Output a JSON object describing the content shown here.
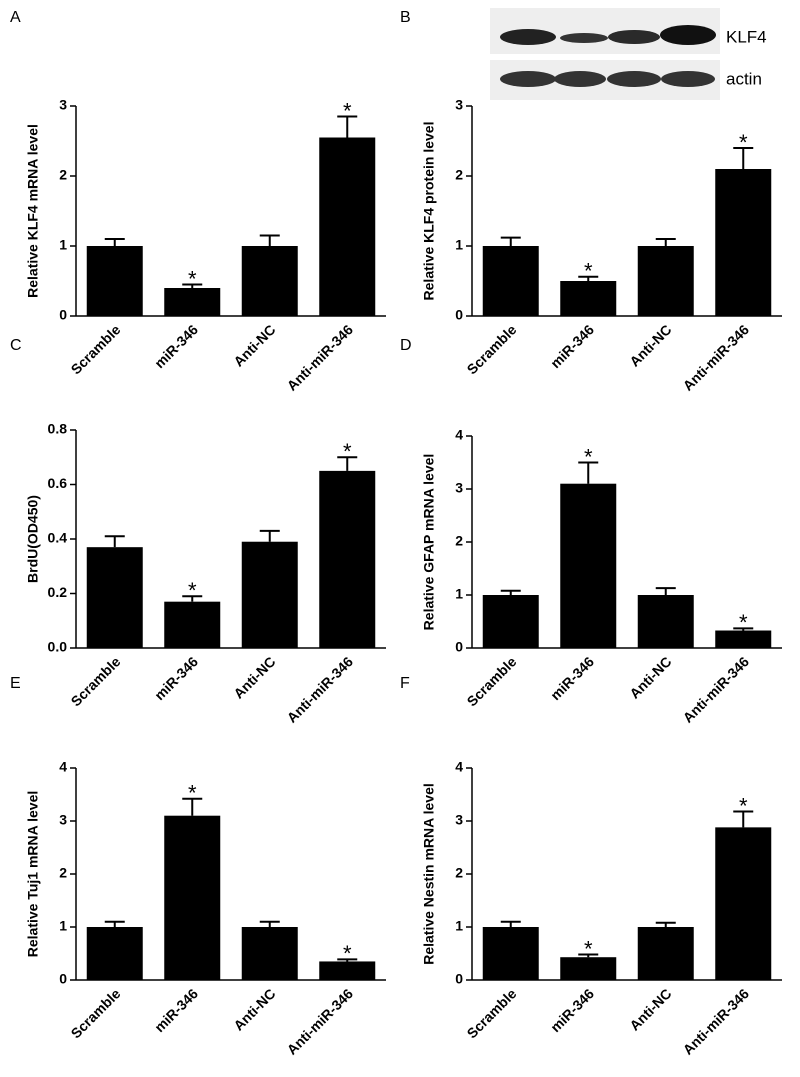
{
  "chart_data": [
    {
      "type": "bar",
      "panel": "A",
      "ylabel": "Relative KLF4 mRNA level",
      "categories": [
        "Scramble",
        "miR-346",
        "Anti-NC",
        "Anti-miR-346"
      ],
      "values": [
        1.0,
        0.4,
        1.0,
        2.55
      ],
      "errors": [
        0.1,
        0.05,
        0.15,
        0.3
      ],
      "significance": [
        null,
        "*",
        null,
        "*"
      ],
      "color": "#000000",
      "ylim": [
        0,
        3
      ],
      "yticks": [
        0,
        1,
        2,
        3
      ]
    },
    {
      "type": "bar",
      "panel": "B",
      "ylabel": "Relative KLF4 protein level",
      "blot_labels": [
        "KLF4",
        "actin"
      ],
      "categories": [
        "Scramble",
        "miR-346",
        "Anti-NC",
        "Anti-miR-346"
      ],
      "values": [
        1.0,
        0.5,
        1.0,
        2.1
      ],
      "errors": [
        0.12,
        0.06,
        0.1,
        0.3
      ],
      "significance": [
        null,
        "*",
        null,
        "*"
      ],
      "color": "#000000",
      "ylim": [
        0,
        3
      ],
      "yticks": [
        0,
        1,
        2,
        3
      ]
    },
    {
      "type": "bar",
      "panel": "C",
      "ylabel": "BrdU(OD450)",
      "categories": [
        "Scramble",
        "miR-346",
        "Anti-NC",
        "Anti-miR-346"
      ],
      "values": [
        0.37,
        0.17,
        0.39,
        0.65
      ],
      "errors": [
        0.04,
        0.02,
        0.04,
        0.05
      ],
      "significance": [
        null,
        "*",
        null,
        "*"
      ],
      "color": "#000000",
      "ylim": [
        0,
        0.8
      ],
      "yticks": [
        {
          "value": 0,
          "label": "0.0"
        },
        0.2,
        0.4,
        0.6,
        0.8
      ]
    },
    {
      "type": "bar",
      "panel": "D",
      "ylabel": "Relative GFAP mRNA level",
      "categories": [
        "Scramble",
        "miR-346",
        "Anti-NC",
        "Anti-miR-346"
      ],
      "values": [
        1.0,
        3.1,
        1.0,
        0.33
      ],
      "errors": [
        0.08,
        0.4,
        0.13,
        0.04
      ],
      "significance": [
        null,
        "*",
        null,
        "*"
      ],
      "color": "#000000",
      "ylim": [
        0,
        4
      ],
      "yticks": [
        0,
        1,
        2,
        3,
        4
      ]
    },
    {
      "type": "bar",
      "panel": "E",
      "ylabel": "Relative Tuj1 mRNA level",
      "categories": [
        "Scramble",
        "miR-346",
        "Anti-NC",
        "Anti-miR-346"
      ],
      "values": [
        1.0,
        3.1,
        1.0,
        0.35
      ],
      "errors": [
        0.1,
        0.32,
        0.1,
        0.04
      ],
      "significance": [
        null,
        "*",
        null,
        "*"
      ],
      "color": "#000000",
      "ylim": [
        0,
        4
      ],
      "yticks": [
        0,
        1,
        2,
        3,
        4
      ]
    },
    {
      "type": "bar",
      "panel": "F",
      "ylabel": "Relative Nestin mRNA level",
      "categories": [
        "Scramble",
        "miR-346",
        "Anti-NC",
        "Anti-miR-346"
      ],
      "values": [
        1.0,
        0.43,
        1.0,
        2.88
      ],
      "errors": [
        0.1,
        0.05,
        0.08,
        0.3
      ],
      "significance": [
        null,
        "*",
        null,
        "*"
      ],
      "color": "#000000",
      "ylim": [
        0,
        4
      ],
      "yticks": [
        0,
        1,
        2,
        3,
        4
      ]
    }
  ]
}
